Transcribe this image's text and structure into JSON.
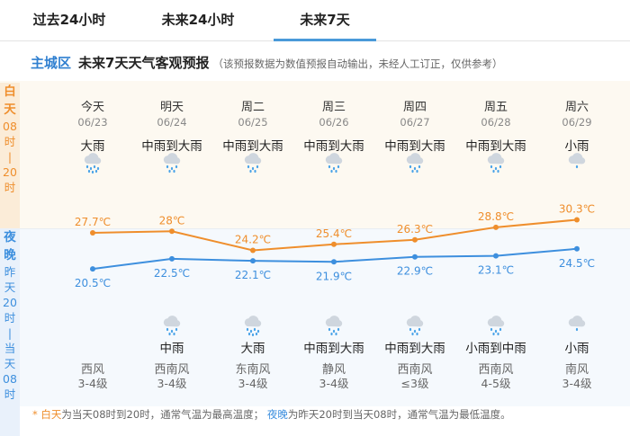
{
  "tabs": [
    {
      "label": "过去24小时"
    },
    {
      "label": "未来24小时"
    },
    {
      "label": "未来7天"
    }
  ],
  "header": {
    "city": "主城区",
    "title": "未来7天天气客观预报",
    "note": "（该预报数据为数值预报自动输出，未经人工订正，仅供参考）"
  },
  "side": {
    "day_title": "白天",
    "day_sub": [
      "08",
      "时",
      "|",
      "20",
      "时"
    ],
    "night_title": "夜晚",
    "night_sub": [
      "昨",
      "天",
      "20",
      "时",
      "|",
      "当",
      "天",
      "08",
      "时"
    ]
  },
  "days": [
    {
      "name": "今天",
      "date": "06/23",
      "day_weather": "大雨",
      "night_weather": "",
      "wind_dir": "西风",
      "wind_level": "3-4级",
      "day_icon": "heavy-rain-icon",
      "night_icon": ""
    },
    {
      "name": "明天",
      "date": "06/24",
      "day_weather": "中雨到大雨",
      "night_weather": "中雨",
      "wind_dir": "西南风",
      "wind_level": "3-4级",
      "day_icon": "rain-icon",
      "night_icon": "rain-icon"
    },
    {
      "name": "周二",
      "date": "06/25",
      "day_weather": "中雨到大雨",
      "night_weather": "大雨",
      "wind_dir": "东南风",
      "wind_level": "3-4级",
      "day_icon": "rain-icon",
      "night_icon": "heavy-rain-icon"
    },
    {
      "name": "周三",
      "date": "06/26",
      "day_weather": "中雨到大雨",
      "night_weather": "中雨到大雨",
      "wind_dir": "静风",
      "wind_level": "3-4级",
      "day_icon": "rain-icon",
      "night_icon": "rain-icon"
    },
    {
      "name": "周四",
      "date": "06/27",
      "day_weather": "中雨到大雨",
      "night_weather": "中雨到大雨",
      "wind_dir": "西南风",
      "wind_level": "≤3级",
      "day_icon": "rain-icon",
      "night_icon": "rain-icon"
    },
    {
      "name": "周五",
      "date": "06/28",
      "day_weather": "中雨到大雨",
      "night_weather": "小雨到中雨",
      "wind_dir": "西南风",
      "wind_level": "4-5级",
      "day_icon": "rain-icon",
      "night_icon": "rain-icon"
    },
    {
      "name": "周六",
      "date": "06/29",
      "day_weather": "小雨",
      "night_weather": "小雨",
      "wind_dir": "南风",
      "wind_level": "3-4级",
      "day_icon": "light-rain-icon",
      "night_icon": "light-rain-icon"
    }
  ],
  "chart_data": {
    "type": "line",
    "categories": [
      "06/23",
      "06/24",
      "06/25",
      "06/26",
      "06/27",
      "06/28",
      "06/29"
    ],
    "series": [
      {
        "values": [
          27.7,
          28.0,
          24.2,
          25.4,
          26.3,
          28.8,
          30.3
        ],
        "labels": [
          "27.7℃",
          "28℃",
          "24.2℃",
          "25.4℃",
          "26.3℃",
          "28.8℃",
          "30.3℃"
        ],
        "color": "#ef8e2c"
      },
      {
        "values": [
          20.5,
          22.5,
          22.1,
          21.9,
          22.9,
          23.1,
          24.5
        ],
        "labels": [
          "20.5℃",
          "22.5℃",
          "22.1℃",
          "21.9℃",
          "22.9℃",
          "23.1℃",
          "24.5℃"
        ],
        "color": "#3d8fde"
      }
    ]
  },
  "footer": {
    "star": "*",
    "day_key": "白天",
    "day_text": "为当天08时到20时，通常气温为最高温度；",
    "night_key": "夜晚",
    "night_text": "为昨天20时到当天08时，通常气温为最低温度。"
  },
  "colors": {
    "day": "#ef8e2c",
    "night": "#3d8fde",
    "accent": "#2f7fd0"
  }
}
